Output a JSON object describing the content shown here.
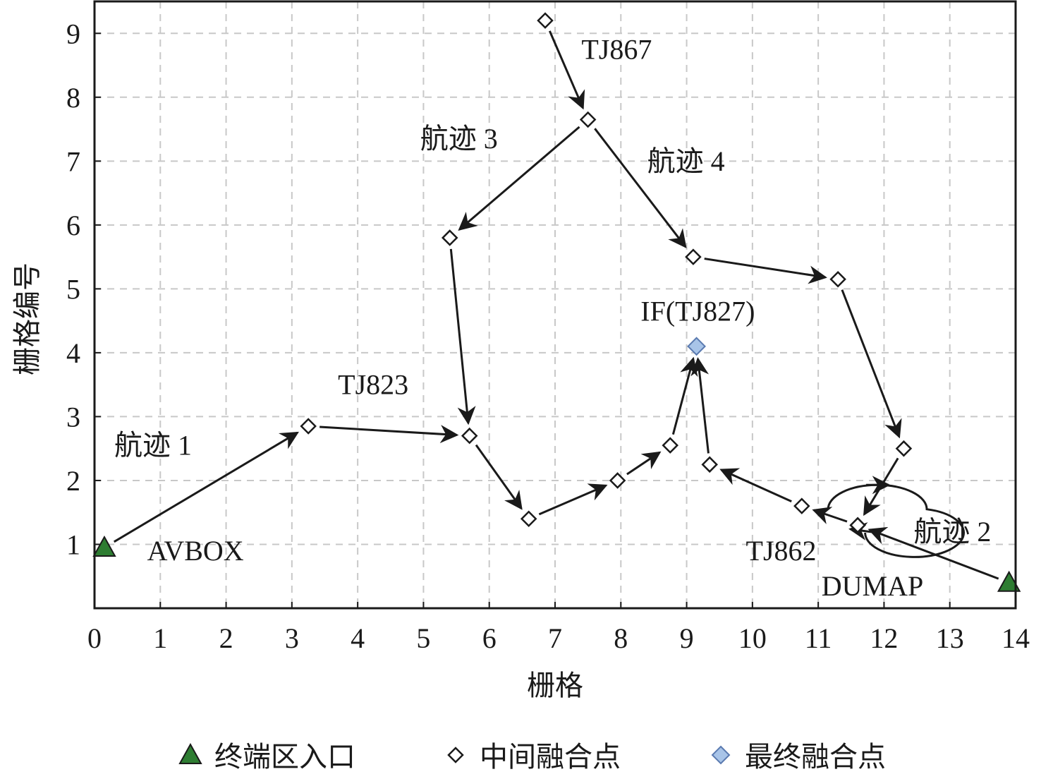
{
  "chart_data": {
    "type": "scatter",
    "xlabel": "栅格",
    "ylabel": "栅格编号",
    "xlim": [
      0,
      14
    ],
    "ylim": [
      0,
      9.5
    ],
    "xticks": [
      "0",
      "1",
      "2",
      "3",
      "4",
      "5",
      "6",
      "7",
      "8",
      "9",
      "10",
      "11",
      "12",
      "13",
      "14"
    ],
    "yticks": [
      "1",
      "2",
      "3",
      "4",
      "5",
      "6",
      "7",
      "8",
      "9"
    ],
    "grid": true,
    "legend_position": "bottom",
    "legend": [
      {
        "key": "entry",
        "label": "终端区入口",
        "marker": "triangle",
        "color": "#2e7d32"
      },
      {
        "key": "intermediate",
        "label": "中间融合点",
        "marker": "diamond-open",
        "color": "#1a1a1a"
      },
      {
        "key": "final",
        "label": "最终融合点",
        "marker": "diamond-filled",
        "color": "#a8c4e8"
      }
    ],
    "points": [
      {
        "id": "AVBOX",
        "x": 0.15,
        "y": 0.95,
        "kind": "entry"
      },
      {
        "id": "DUMAP",
        "x": 13.9,
        "y": 0.4,
        "kind": "entry"
      },
      {
        "id": "p_tj823a",
        "x": 3.25,
        "y": 2.85,
        "kind": "intermediate"
      },
      {
        "id": "p_tj823b",
        "x": 5.7,
        "y": 2.7,
        "kind": "intermediate"
      },
      {
        "id": "p_low1",
        "x": 6.6,
        "y": 1.4,
        "kind": "intermediate"
      },
      {
        "id": "p_low2",
        "x": 7.95,
        "y": 2.0,
        "kind": "intermediate"
      },
      {
        "id": "p_low3",
        "x": 8.75,
        "y": 2.55,
        "kind": "intermediate"
      },
      {
        "id": "p_top",
        "x": 6.85,
        "y": 9.2,
        "kind": "intermediate"
      },
      {
        "id": "p_tj867",
        "x": 7.5,
        "y": 7.65,
        "kind": "intermediate"
      },
      {
        "id": "p_left",
        "x": 5.4,
        "y": 5.8,
        "kind": "intermediate"
      },
      {
        "id": "p_r1",
        "x": 9.1,
        "y": 5.5,
        "kind": "intermediate"
      },
      {
        "id": "p_r2",
        "x": 11.3,
        "y": 5.15,
        "kind": "intermediate"
      },
      {
        "id": "p_r3",
        "x": 12.3,
        "y": 2.5,
        "kind": "intermediate"
      },
      {
        "id": "p_tj862",
        "x": 10.75,
        "y": 1.6,
        "kind": "intermediate"
      },
      {
        "id": "p_dumap_near",
        "x": 11.6,
        "y": 1.3,
        "kind": "intermediate"
      },
      {
        "id": "p_mid",
        "x": 9.35,
        "y": 2.25,
        "kind": "intermediate"
      },
      {
        "id": "IF",
        "x": 9.15,
        "y": 4.1,
        "kind": "final"
      }
    ],
    "arrows": [
      {
        "from": "AVBOX",
        "to": "p_tj823a"
      },
      {
        "from": "p_tj823a",
        "to": "p_tj823b"
      },
      {
        "from": "p_tj823b",
        "to": "p_low1"
      },
      {
        "from": "p_low1",
        "to": "p_low2"
      },
      {
        "from": "p_low2",
        "to": "p_low3"
      },
      {
        "from": "p_low3",
        "to": "IF"
      },
      {
        "from": "p_top",
        "to": "p_tj867"
      },
      {
        "from": "p_tj867",
        "to": "p_left"
      },
      {
        "from": "p_left",
        "to": "p_tj823b"
      },
      {
        "from": "p_tj867",
        "to": "p_r1"
      },
      {
        "from": "p_r1",
        "to": "p_r2"
      },
      {
        "from": "p_r2",
        "to": "p_r3"
      },
      {
        "from": "p_r3",
        "to": "p_dumap_near"
      },
      {
        "from": "DUMAP",
        "to": "p_dumap_near"
      },
      {
        "from": "p_dumap_near",
        "to": "p_tj862"
      },
      {
        "from": "p_tj862",
        "to": "p_mid"
      },
      {
        "from": "p_mid",
        "to": "IF"
      }
    ],
    "annotations": [
      {
        "text": "航迹 1",
        "x": 0.3,
        "y": 2.4
      },
      {
        "text": "AVBOX",
        "x": 0.8,
        "y": 0.75
      },
      {
        "text": "TJ823",
        "x": 3.7,
        "y": 3.35
      },
      {
        "text": "TJ867",
        "x": 7.4,
        "y": 8.6
      },
      {
        "text": "航迹 3",
        "x": 4.95,
        "y": 7.2
      },
      {
        "text": "航迹 4",
        "x": 8.4,
        "y": 6.85
      },
      {
        "text": "IF(TJ827)",
        "x": 8.3,
        "y": 4.5
      },
      {
        "text": "航迹 2",
        "x": 12.45,
        "y": 1.05
      },
      {
        "text": "TJ862",
        "x": 9.9,
        "y": 0.75
      },
      {
        "text": "DUMAP",
        "x": 11.05,
        "y": 0.2
      }
    ],
    "loop": {
      "cx": 11.9,
      "cy": 1.55,
      "rx": 0.75,
      "ry": 0.38
    }
  }
}
